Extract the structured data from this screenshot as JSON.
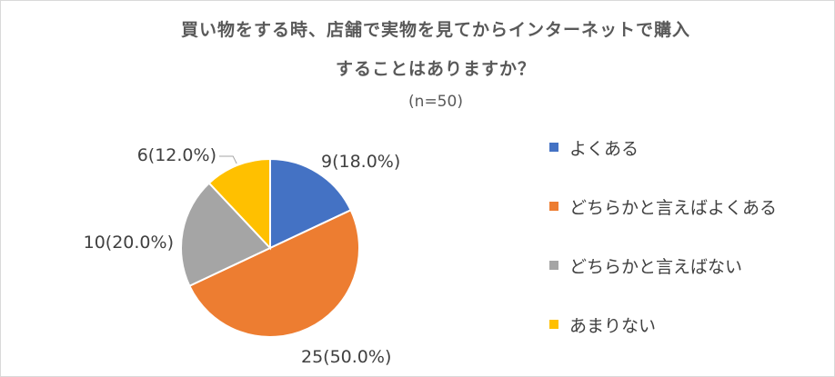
{
  "chart_data": {
    "type": "pie",
    "title": "買い物をする時、店舗で実物を見てからインターネットで購入することはありますか？",
    "title_lines": [
      "買い物をする時、店舗で実物を見てからインターネットで購入",
      "することはありますか？"
    ],
    "subtitle": "(n=50)",
    "categories": [
      "よくある",
      "どちらかと言えばよくある",
      "どちらかと言えばない",
      "あまりない"
    ],
    "values": [
      9,
      25,
      10,
      6
    ],
    "percentages": [
      18.0,
      50.0,
      20.0,
      12.0
    ],
    "data_labels": [
      "9(18.0%)",
      "25(50.0%)",
      "10(20.0%)",
      "6(12.0%)"
    ],
    "colors": [
      "#4472C4",
      "#ED7D31",
      "#A5A5A5",
      "#FFC000"
    ],
    "legend_position": "right"
  }
}
